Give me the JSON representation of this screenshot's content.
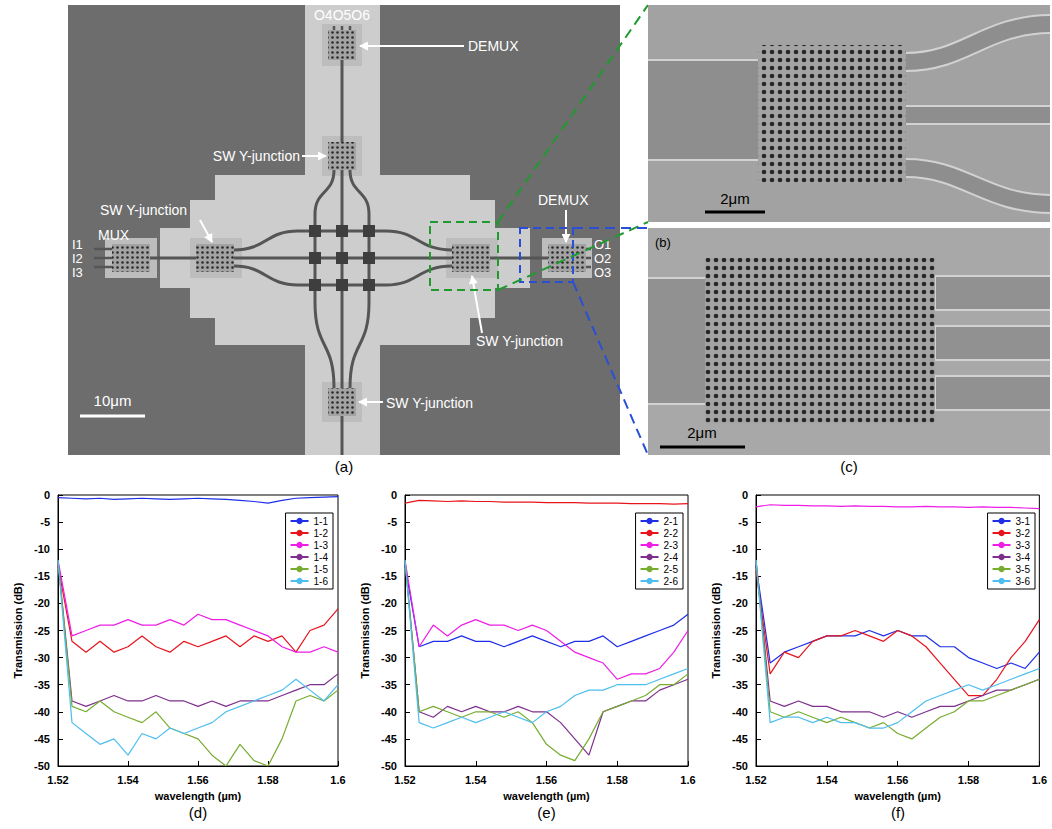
{
  "figure": {
    "panel_a": {
      "caption": "(a)",
      "ports_top": "O4O5O6",
      "demux": [
        "DEMUX",
        "DEMUX"
      ],
      "y_junction": [
        "SW Y-junction",
        "SW Y-junction",
        "SW Y-junction",
        "SW Y-junction"
      ],
      "mux": "MUX",
      "inputs": [
        "I1",
        "I2",
        "I3"
      ],
      "outputs": [
        "O1",
        "O2",
        "O3"
      ],
      "scale_bar": "10μm"
    },
    "panel_b": {
      "caption": "(b)",
      "scale_bar": "2μm"
    },
    "panel_c": {
      "caption": "(c)",
      "scale_bar": "2μm"
    }
  },
  "chart_data": [
    {
      "type": "line",
      "label": "(d)",
      "xlabel": "wavelength (µm)",
      "ylabel": "Transmission (dB)",
      "x": [
        1.52,
        1.524,
        1.528,
        1.532,
        1.536,
        1.54,
        1.544,
        1.548,
        1.552,
        1.556,
        1.56,
        1.564,
        1.568,
        1.572,
        1.576,
        1.58,
        1.584,
        1.588,
        1.592,
        1.596,
        1.6
      ],
      "xlim": [
        1.52,
        1.6
      ],
      "xticks": [
        1.52,
        1.54,
        1.56,
        1.58,
        1.6
      ],
      "ylim": [
        -50,
        0
      ],
      "yticks": [
        -50,
        -45,
        -40,
        -35,
        -30,
        -25,
        -20,
        -15,
        -10,
        -5,
        0
      ],
      "grid": false,
      "legend": "top-right",
      "series": [
        {
          "name": "1-1",
          "color": "#1f2fe8",
          "values": [
            -0.5,
            -0.6,
            -0.7,
            -0.6,
            -0.8,
            -0.7,
            -0.6,
            -0.7,
            -0.8,
            -0.7,
            -0.6,
            -0.7,
            -0.8,
            -1.0,
            -1.2,
            -1.5,
            -1.0,
            -0.6,
            -0.5,
            -0.4,
            -0.3
          ]
        },
        {
          "name": "1-2",
          "color": "#e8141c",
          "values": [
            -13,
            -27,
            -29,
            -27,
            -29,
            -28,
            -26,
            -28,
            -29,
            -27,
            -28,
            -27,
            -26,
            -28,
            -26,
            -27,
            -26,
            -29,
            -25,
            -24,
            -21
          ]
        },
        {
          "name": "1-3",
          "color": "#ee1ee6",
          "values": [
            -12,
            -26,
            -25,
            -24,
            -24,
            -23,
            -24,
            -24,
            -23,
            -24,
            -22,
            -23,
            -23,
            -24,
            -25,
            -26,
            -28,
            -29,
            -29,
            -28,
            -29
          ]
        },
        {
          "name": "1-4",
          "color": "#7e2f8e",
          "values": [
            -12,
            -38,
            -39,
            -38,
            -37,
            -38,
            -38,
            -37,
            -38,
            -38,
            -39,
            -38,
            -39,
            -38,
            -38,
            -38,
            -37,
            -36,
            -35,
            -35,
            -33
          ]
        },
        {
          "name": "1-5",
          "color": "#77ac30",
          "values": [
            -12,
            -39,
            -40,
            -38,
            -40,
            -41,
            -42,
            -40,
            -43,
            -44,
            -45,
            -48,
            -50,
            -46,
            -49,
            -50,
            -45,
            -38,
            -37,
            -38,
            -36
          ]
        },
        {
          "name": "1-6",
          "color": "#4dbeee",
          "values": [
            -12,
            -42,
            -44,
            -46,
            -45,
            -48,
            -44,
            -45,
            -43,
            -44,
            -43,
            -42,
            -40,
            -39,
            -38,
            -37,
            -36,
            -34,
            -36,
            -38,
            -35
          ]
        }
      ]
    },
    {
      "type": "line",
      "label": "(e)",
      "xlabel": "wavelength (µm)",
      "ylabel": "Transmission (dB)",
      "x": [
        1.52,
        1.524,
        1.528,
        1.532,
        1.536,
        1.54,
        1.544,
        1.548,
        1.552,
        1.556,
        1.56,
        1.564,
        1.568,
        1.572,
        1.576,
        1.58,
        1.584,
        1.588,
        1.592,
        1.596,
        1.6
      ],
      "xlim": [
        1.52,
        1.6
      ],
      "xticks": [
        1.52,
        1.54,
        1.56,
        1.58,
        1.6
      ],
      "ylim": [
        -50,
        0
      ],
      "yticks": [
        -50,
        -45,
        -40,
        -35,
        -30,
        -25,
        -20,
        -15,
        -10,
        -5,
        0
      ],
      "grid": false,
      "legend": "top-right",
      "series": [
        {
          "name": "2-1",
          "color": "#1f2fe8",
          "values": [
            -13,
            -28,
            -27,
            -27,
            -26,
            -27,
            -27,
            -28,
            -27,
            -26,
            -27,
            -28,
            -27,
            -27,
            -26,
            -28,
            -27,
            -26,
            -25,
            -24,
            -22
          ]
        },
        {
          "name": "2-2",
          "color": "#e8141c",
          "values": [
            -1.5,
            -1.0,
            -1.1,
            -1.2,
            -1.1,
            -1.2,
            -1.2,
            -1.3,
            -1.3,
            -1.3,
            -1.4,
            -1.4,
            -1.4,
            -1.5,
            -1.5,
            -1.5,
            -1.6,
            -1.6,
            -1.6,
            -1.7,
            -1.6
          ]
        },
        {
          "name": "2-3",
          "color": "#ee1ee6",
          "values": [
            -12,
            -28,
            -24,
            -26,
            -24,
            -23,
            -24,
            -24,
            -25,
            -24,
            -25,
            -27,
            -29,
            -30,
            -31,
            -34,
            -33,
            -33,
            -32,
            -29,
            -25
          ]
        },
        {
          "name": "2-4",
          "color": "#7e2f8e",
          "values": [
            -12,
            -40,
            -41,
            -39,
            -40,
            -39,
            -40,
            -40,
            -39,
            -40,
            -40,
            -42,
            -45,
            -48,
            -40,
            -39,
            -38,
            -38,
            -36,
            -35,
            -34
          ]
        },
        {
          "name": "2-5",
          "color": "#77ac30",
          "values": [
            -12,
            -40,
            -39,
            -40,
            -41,
            -40,
            -40,
            -41,
            -40,
            -42,
            -46,
            -48,
            -49,
            -45,
            -40,
            -39,
            -38,
            -37,
            -35,
            -35,
            -33
          ]
        },
        {
          "name": "2-6",
          "color": "#4dbeee",
          "values": [
            -12,
            -42,
            -43,
            -42,
            -41,
            -42,
            -41,
            -40,
            -41,
            -42,
            -40,
            -39,
            -37,
            -36,
            -36,
            -35,
            -35,
            -35,
            -34,
            -33,
            -32
          ]
        }
      ]
    },
    {
      "type": "line",
      "label": "(f)",
      "xlabel": "wavelength (µm)",
      "ylabel": "Transmission (dB)",
      "x": [
        1.52,
        1.524,
        1.528,
        1.532,
        1.536,
        1.54,
        1.544,
        1.548,
        1.552,
        1.556,
        1.56,
        1.564,
        1.568,
        1.572,
        1.576,
        1.58,
        1.584,
        1.588,
        1.592,
        1.596,
        1.6
      ],
      "xlim": [
        1.52,
        1.6
      ],
      "xticks": [
        1.52,
        1.54,
        1.56,
        1.58,
        1.6
      ],
      "ylim": [
        -50,
        0
      ],
      "yticks": [
        -50,
        -45,
        -40,
        -35,
        -30,
        -25,
        -20,
        -15,
        -10,
        -5,
        0
      ],
      "grid": false,
      "legend": "top-right",
      "series": [
        {
          "name": "3-1",
          "color": "#1f2fe8",
          "values": [
            -13,
            -31,
            -29,
            -28,
            -27,
            -26,
            -26,
            -26,
            -25,
            -26,
            -25,
            -26,
            -26,
            -28,
            -28,
            -30,
            -31,
            -32,
            -31,
            -32,
            -29
          ]
        },
        {
          "name": "3-2",
          "color": "#e8141c",
          "values": [
            -14,
            -33,
            -29,
            -30,
            -27,
            -26,
            -26,
            -25,
            -26,
            -27,
            -25,
            -26,
            -28,
            -31,
            -34,
            -37,
            -37,
            -34,
            -30,
            -27,
            -23
          ]
        },
        {
          "name": "3-3",
          "color": "#ee1ee6",
          "values": [
            -2.2,
            -1.8,
            -1.9,
            -1.9,
            -2.0,
            -2.0,
            -2.1,
            -2.0,
            -2.1,
            -2.1,
            -2.2,
            -2.2,
            -2.1,
            -2.2,
            -2.2,
            -2.3,
            -2.2,
            -2.3,
            -2.3,
            -2.4,
            -2.5
          ]
        },
        {
          "name": "3-4",
          "color": "#7e2f8e",
          "values": [
            -12,
            -38,
            -39,
            -38,
            -39,
            -39,
            -40,
            -40,
            -40,
            -41,
            -40,
            -41,
            -40,
            -39,
            -39,
            -38,
            -37,
            -36,
            -36,
            -35,
            -34
          ]
        },
        {
          "name": "3-5",
          "color": "#77ac30",
          "values": [
            -12,
            -40,
            -41,
            -40,
            -41,
            -42,
            -41,
            -42,
            -43,
            -42,
            -44,
            -45,
            -43,
            -41,
            -40,
            -38,
            -38,
            -37,
            -36,
            -35,
            -34
          ]
        },
        {
          "name": "3-6",
          "color": "#4dbeee",
          "values": [
            -12,
            -42,
            -41,
            -41,
            -42,
            -41,
            -42,
            -42,
            -43,
            -43,
            -42,
            -40,
            -38,
            -37,
            -36,
            -35,
            -36,
            -35,
            -34,
            -33,
            -32
          ]
        }
      ]
    }
  ]
}
